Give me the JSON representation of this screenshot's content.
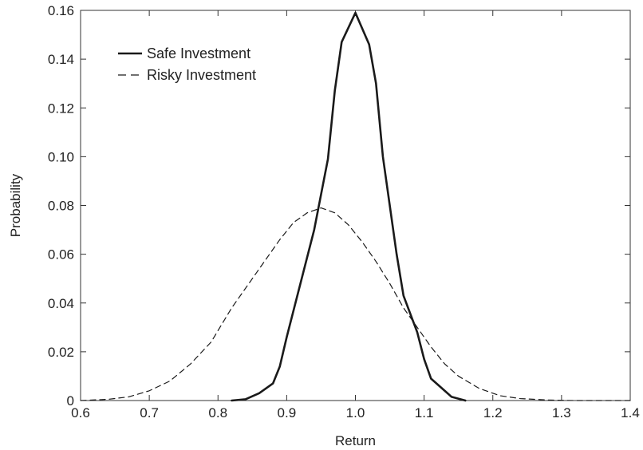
{
  "chart_data": {
    "type": "line",
    "xlabel": "Return",
    "ylabel": "Probability",
    "xlim": [
      0.6,
      1.4
    ],
    "ylim": [
      0,
      0.16
    ],
    "x_ticks": [
      0.6,
      0.7,
      0.8,
      0.9,
      1.0,
      1.1,
      1.2,
      1.3,
      1.4
    ],
    "x_tick_labels": [
      "0.6",
      "0.7",
      "0.8",
      "0.9",
      "1.0",
      "1.1",
      "1.2",
      "1.3",
      "1.4"
    ],
    "y_ticks": [
      0,
      0.02,
      0.04,
      0.06,
      0.08,
      0.1,
      0.12,
      0.14,
      0.16
    ],
    "y_tick_labels": [
      "0",
      "0.02",
      "0.04",
      "0.06",
      "0.08",
      "0.10",
      "0.12",
      "0.14",
      "0.16"
    ],
    "grid": false,
    "legend_position": "top-left",
    "series": [
      {
        "name": "Safe Investment",
        "style": "solid",
        "color": "#1a1a1a",
        "points": [
          [
            0.82,
            0.0
          ],
          [
            0.84,
            0.0005
          ],
          [
            0.86,
            0.003
          ],
          [
            0.88,
            0.007
          ],
          [
            0.89,
            0.014
          ],
          [
            0.9,
            0.026
          ],
          [
            0.92,
            0.048
          ],
          [
            0.94,
            0.07
          ],
          [
            0.96,
            0.099
          ],
          [
            0.97,
            0.127
          ],
          [
            0.98,
            0.147
          ],
          [
            1.0,
            0.159
          ],
          [
            1.02,
            0.146
          ],
          [
            1.03,
            0.13
          ],
          [
            1.04,
            0.1
          ],
          [
            1.06,
            0.06
          ],
          [
            1.07,
            0.043
          ],
          [
            1.09,
            0.028
          ],
          [
            1.1,
            0.017
          ],
          [
            1.11,
            0.009
          ],
          [
            1.13,
            0.004
          ],
          [
            1.14,
            0.0015
          ],
          [
            1.16,
            0.0
          ]
        ]
      },
      {
        "name": "Risky Investment",
        "style": "dashed",
        "color": "#1a1a1a",
        "points": [
          [
            0.6,
            0.0
          ],
          [
            0.64,
            0.0005
          ],
          [
            0.67,
            0.0015
          ],
          [
            0.7,
            0.004
          ],
          [
            0.73,
            0.008
          ],
          [
            0.76,
            0.015
          ],
          [
            0.79,
            0.024
          ],
          [
            0.82,
            0.038
          ],
          [
            0.85,
            0.05
          ],
          [
            0.87,
            0.058
          ],
          [
            0.89,
            0.066
          ],
          [
            0.91,
            0.073
          ],
          [
            0.93,
            0.077
          ],
          [
            0.95,
            0.079
          ],
          [
            0.97,
            0.077
          ],
          [
            0.99,
            0.072
          ],
          [
            1.01,
            0.065
          ],
          [
            1.03,
            0.057
          ],
          [
            1.05,
            0.048
          ],
          [
            1.07,
            0.038
          ],
          [
            1.09,
            0.03
          ],
          [
            1.11,
            0.022
          ],
          [
            1.13,
            0.015
          ],
          [
            1.15,
            0.01
          ],
          [
            1.18,
            0.005
          ],
          [
            1.21,
            0.002
          ],
          [
            1.24,
            0.0008
          ],
          [
            1.28,
            0.0002
          ],
          [
            1.32,
            0.0
          ],
          [
            1.4,
            0.0
          ]
        ]
      }
    ]
  }
}
